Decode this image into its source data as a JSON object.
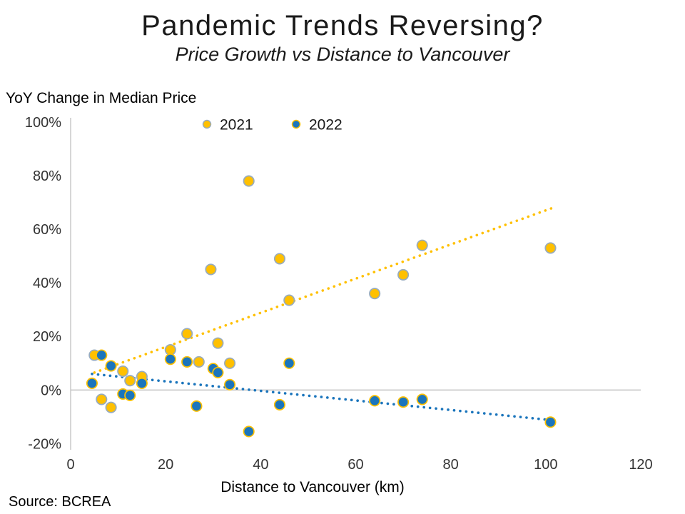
{
  "header": {
    "title": "Pandemic Trends Reversing?",
    "subtitle": "Price Growth vs Distance to Vancouver"
  },
  "footer": {
    "source": "Source: BCREA"
  },
  "chart_data": {
    "type": "scatter",
    "title": "Pandemic Trends Reversing?",
    "subtitle": "Price Growth vs Distance to Vancouver",
    "xlabel": "Distance to Vancouver (km)",
    "ylabel": "YoY Change in Median Price",
    "xlim": [
      0,
      120
    ],
    "ylim": [
      -20,
      100
    ],
    "grid": "zero-line-only",
    "legend_position": "top-center",
    "xticks": {
      "values": [
        0,
        20,
        40,
        60,
        80,
        100,
        120
      ],
      "labels": [
        "0",
        "20",
        "40",
        "60",
        "80",
        "100",
        "120"
      ]
    },
    "yticks": {
      "values": [
        100,
        80,
        60,
        40,
        20,
        0,
        -20
      ],
      "labels": [
        "100%",
        "80%",
        "60%",
        "40%",
        "20%",
        "0%",
        "-20%"
      ]
    },
    "colors": {
      "series_2021_fill": "#FFC000",
      "series_2021_stroke": "#97ABBE",
      "series_2022_fill": "#1B75BC",
      "series_2022_stroke": "#FFC000",
      "axis_line": "#BFBFBF",
      "tick_text": "#333333"
    },
    "series": [
      {
        "name": "2021",
        "fill": "#FFC000",
        "stroke": "#97ABBE",
        "points": [
          [
            5,
            13
          ],
          [
            6.5,
            -3.5
          ],
          [
            8.5,
            -6.5
          ],
          [
            11,
            7
          ],
          [
            12.5,
            3.5
          ],
          [
            15,
            5
          ],
          [
            21,
            15
          ],
          [
            24.5,
            21
          ],
          [
            27,
            10.5
          ],
          [
            29.5,
            45
          ],
          [
            31,
            17.5
          ],
          [
            33.5,
            10
          ],
          [
            37.5,
            78
          ],
          [
            44,
            49
          ],
          [
            46,
            33.5
          ],
          [
            64,
            36
          ],
          [
            70,
            43
          ],
          [
            74,
            54
          ],
          [
            101,
            53
          ]
        ],
        "trendline": {
          "style": "dotted",
          "x1": 5,
          "y1": 6.5,
          "x2": 101.5,
          "y2": 68
        }
      },
      {
        "name": "2022",
        "fill": "#1B75BC",
        "stroke": "#FFC000",
        "points": [
          [
            4.5,
            2.5
          ],
          [
            6.5,
            13
          ],
          [
            8.5,
            9
          ],
          [
            11,
            -1.5
          ],
          [
            12.5,
            -2
          ],
          [
            15,
            2.5
          ],
          [
            21,
            11.5
          ],
          [
            24.5,
            10.5
          ],
          [
            26.5,
            -6
          ],
          [
            30,
            8
          ],
          [
            31,
            6.5
          ],
          [
            33.5,
            2
          ],
          [
            37.5,
            -15.5
          ],
          [
            44,
            -5.5
          ],
          [
            46,
            10
          ],
          [
            64,
            -4
          ],
          [
            70,
            -4.5
          ],
          [
            74,
            -3.5
          ],
          [
            101,
            -12
          ]
        ],
        "trendline": {
          "style": "dotted",
          "x1": 4.5,
          "y1": 6,
          "x2": 101.5,
          "y2": -11.3
        }
      }
    ]
  }
}
